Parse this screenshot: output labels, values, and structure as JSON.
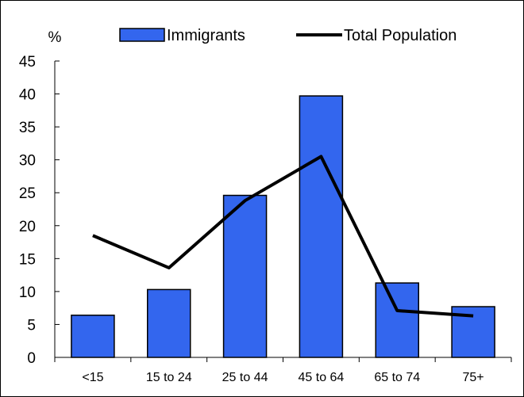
{
  "chart_data": {
    "type": "bar",
    "title": "",
    "ylabel": "%",
    "xlabel": "",
    "categories": [
      "<15",
      "15 to 24",
      "25 to 44",
      "45 to 64",
      "65 to 74",
      "75+"
    ],
    "ylim": [
      0,
      45
    ],
    "yticks": [
      0,
      5,
      10,
      15,
      20,
      25,
      30,
      35,
      40,
      45
    ],
    "series": [
      {
        "name": "Immigrants",
        "type": "bar",
        "values": [
          6.4,
          10.3,
          24.6,
          39.7,
          11.3,
          7.7
        ],
        "color": "#3366ee"
      },
      {
        "name": "Total Population",
        "type": "line",
        "values": [
          18.5,
          13.6,
          23.8,
          30.5,
          7.1,
          6.3
        ],
        "color": "#000000"
      }
    ],
    "legend_position": "top",
    "grid": false
  }
}
